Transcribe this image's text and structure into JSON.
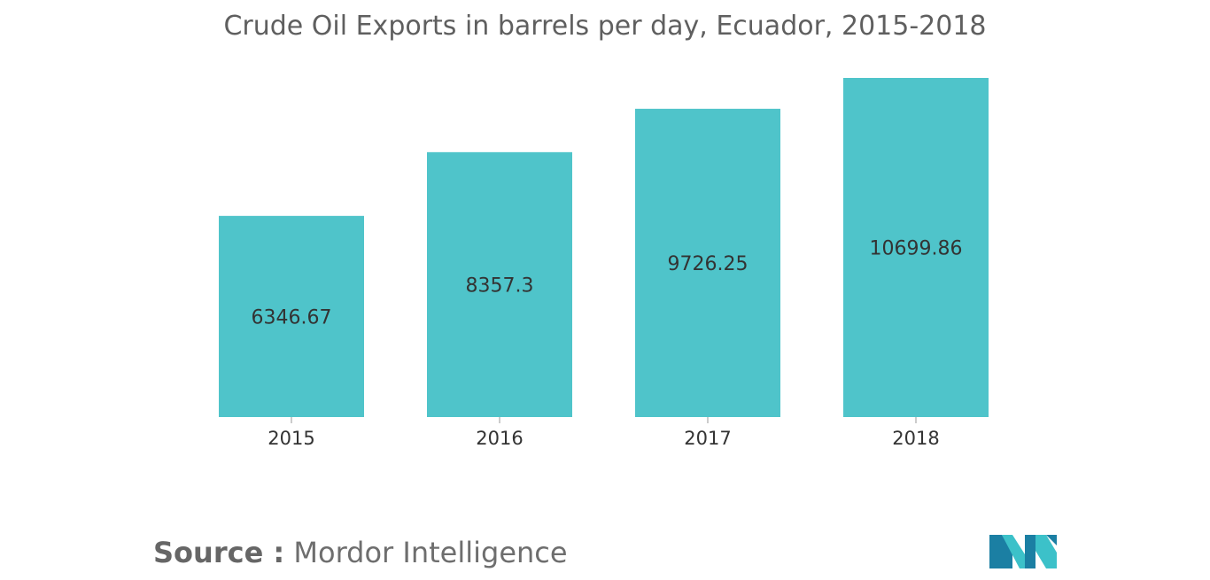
{
  "source": {
    "label": "Source :",
    "value": "Mordor Intelligence"
  },
  "logo": {
    "icon": "mordor-intelligence-logo",
    "colors": [
      "#1b7fa3",
      "#3cc1c9"
    ]
  },
  "colors": {
    "bar": "#4fc4ca",
    "title": "#5f5f5f",
    "text": "#333333",
    "axis": "#999999"
  },
  "chart_data": {
    "type": "bar",
    "title": "Crude Oil Exports in barrels per day, Ecuador, 2015-2018",
    "xlabel": "",
    "ylabel": "",
    "categories": [
      "2015",
      "2016",
      "2017",
      "2018"
    ],
    "values": [
      6346.67,
      8357.3,
      9726.25,
      10699.86
    ],
    "data_labels": [
      "6346.67",
      "8357.3",
      "9726.25",
      "10699.86"
    ],
    "ylim": [
      0,
      10699.86
    ],
    "grid": false,
    "legend": "none"
  }
}
